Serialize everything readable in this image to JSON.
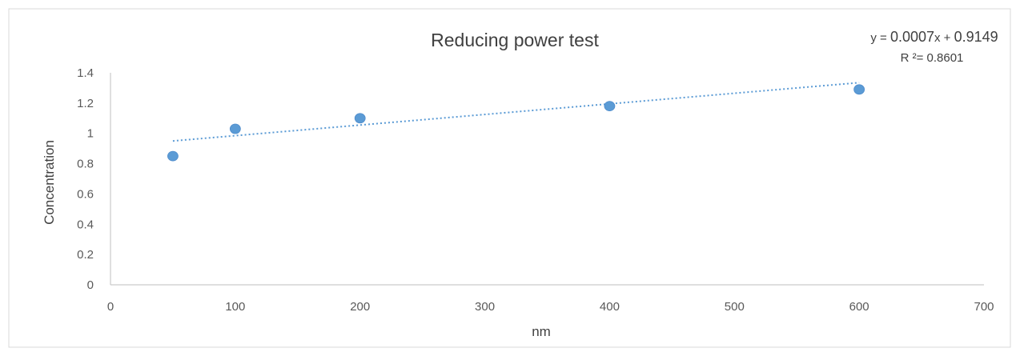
{
  "chart_data": {
    "type": "scatter",
    "title": "Reducing power test",
    "xlabel": "nm",
    "ylabel": "Concentration",
    "xlim": [
      0,
      700
    ],
    "ylim": [
      0,
      1.4
    ],
    "x_ticks": [
      "0",
      "100",
      "200",
      "300",
      "400",
      "500",
      "600",
      "700"
    ],
    "y_ticks": [
      "0",
      "0.2",
      "0.4",
      "0.6",
      "0.8",
      "1",
      "1.2",
      "1.4"
    ],
    "grid": false,
    "legend": "none",
    "series": [
      {
        "x": [
          50,
          100,
          200,
          400,
          600
        ],
        "y": [
          0.85,
          1.03,
          1.1,
          1.18,
          1.29
        ],
        "color": "#5b9bd5"
      }
    ],
    "trendline": {
      "type": "linear",
      "slope": 0.0007,
      "intercept": 0.9149,
      "x_range": [
        50,
        600
      ],
      "style": "dotted",
      "color": "#5b9bd5",
      "equation_parts": [
        "y = ",
        "0.0007",
        "x + ",
        "0.9149"
      ],
      "r2_label": "R ²= 0.8601"
    }
  }
}
